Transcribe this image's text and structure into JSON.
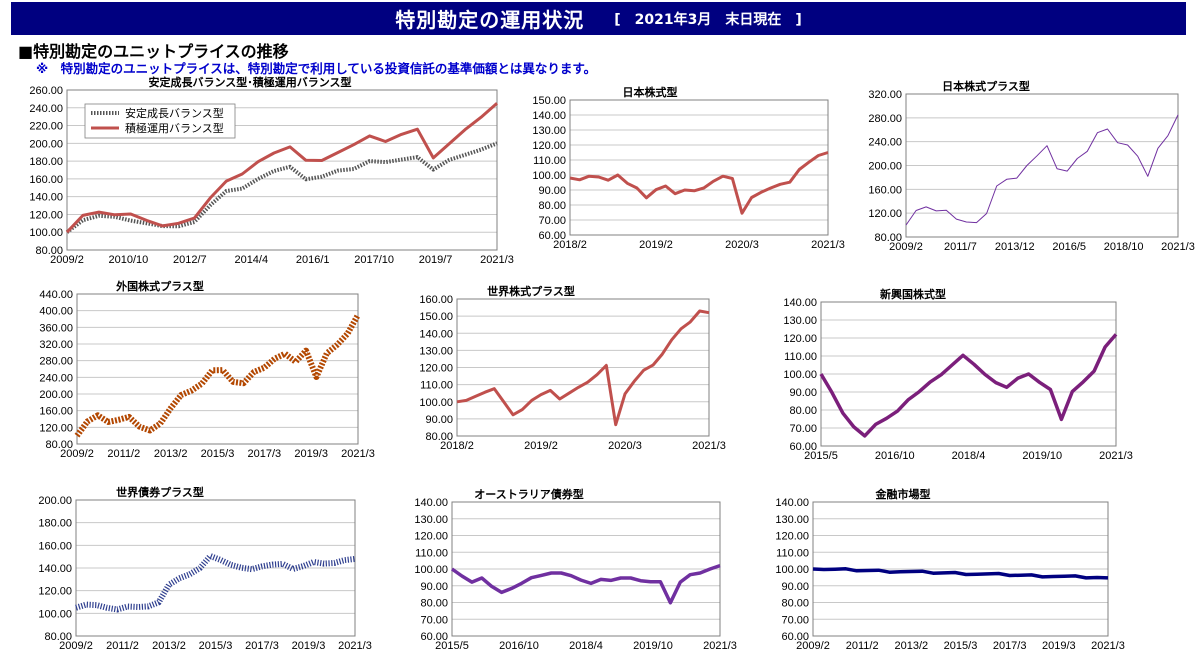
{
  "header": {
    "title": "特別勘定の運用状況",
    "date": "[　2021年3月　末日現在　]"
  },
  "subtitle": "■特別勘定のユニットプライスの推移",
  "note": "※　特別勘定のユニットプライスは、特別勘定で利用している投資信託の基準価額とは異なります。",
  "chart_data": [
    {
      "type": "line",
      "title": "安定成長バランス型･積極運用バランス型",
      "xticks": [
        "2009/2",
        "2010/10",
        "2012/7",
        "2014/4",
        "2016/1",
        "2017/10",
        "2019/7",
        "2021/3"
      ],
      "yticks": [
        "80.00",
        "100.00",
        "120.00",
        "140.00",
        "160.00",
        "180.00",
        "200.00",
        "220.00",
        "240.00",
        "260.00"
      ],
      "ylim": [
        80,
        260
      ],
      "legend": "top-left",
      "series": [
        {
          "name": "安定成長バランス型",
          "color": "#555555",
          "pattern": "dotted",
          "values": [
            100,
            114,
            118,
            116,
            114,
            110,
            106,
            108,
            112,
            130,
            145,
            150,
            160,
            168,
            175,
            160,
            162,
            168,
            172,
            180,
            178,
            183,
            185,
            170,
            180,
            188,
            193,
            200
          ]
        },
        {
          "name": "積極運用バランス型",
          "color": "#c0504d",
          "pattern": "solid",
          "values": [
            100,
            118,
            124,
            120,
            120,
            112,
            108,
            110,
            115,
            140,
            158,
            165,
            178,
            190,
            196,
            180,
            182,
            190,
            198,
            207,
            203,
            210,
            215,
            185,
            200,
            215,
            228,
            245
          ]
        }
      ]
    },
    {
      "type": "line",
      "title": "日本株式型",
      "xticks": [
        "2018/2",
        "2019/2",
        "2020/3",
        "2021/3"
      ],
      "yticks": [
        "60.00",
        "70.00",
        "80.00",
        "90.00",
        "100.00",
        "110.00",
        "120.00",
        "130.00",
        "140.00",
        "150.00"
      ],
      "ylim": [
        60,
        150
      ],
      "series": [
        {
          "name": "",
          "color": "#c0504d",
          "pattern": "solid",
          "values": [
            98,
            97,
            99,
            98,
            97,
            100,
            94,
            92,
            85,
            90,
            92,
            88,
            90,
            89,
            92,
            96,
            99,
            97,
            75,
            85,
            88,
            92,
            94,
            95,
            103,
            109,
            113,
            115
          ]
        }
      ]
    },
    {
      "type": "line",
      "title": "日本株式プラス型",
      "xticks": [
        "2009/2",
        "2011/7",
        "2013/12",
        "2016/5",
        "2018/10",
        "2021/3"
      ],
      "yticks": [
        "80.00",
        "120.00",
        "160.00",
        "200.00",
        "240.00",
        "280.00",
        "320.00"
      ],
      "ylim": [
        80,
        320
      ],
      "series": [
        {
          "name": "",
          "color": "#7030a0",
          "pattern": "thin",
          "values": [
            100,
            125,
            130,
            122,
            126,
            110,
            104,
            106,
            120,
            165,
            175,
            180,
            200,
            215,
            235,
            195,
            190,
            210,
            225,
            255,
            260,
            240,
            235,
            215,
            180,
            230,
            250,
            285
          ]
        }
      ]
    },
    {
      "type": "line",
      "title": "外国株式プラス型",
      "xticks": [
        "2009/2",
        "2011/2",
        "2013/2",
        "2015/3",
        "2017/3",
        "2019/3",
        "2021/3"
      ],
      "yticks": [
        "80.00",
        "120.00",
        "160.00",
        "200.00",
        "240.00",
        "280.00",
        "320.00",
        "360.00",
        "400.00",
        "440.00"
      ],
      "ylim": [
        80,
        440
      ],
      "series": [
        {
          "name": "",
          "color": "#b34700",
          "pattern": "dotted-thick",
          "values": [
            100,
            135,
            148,
            130,
            140,
            145,
            120,
            115,
            130,
            165,
            195,
            210,
            225,
            255,
            260,
            230,
            225,
            250,
            265,
            285,
            295,
            280,
            305,
            240,
            295,
            320,
            345,
            390
          ]
        }
      ]
    },
    {
      "type": "line",
      "title": "世界株式プラス型",
      "xticks": [
        "2018/2",
        "2019/2",
        "2020/3",
        "2021/3"
      ],
      "yticks": [
        "80.00",
        "90.00",
        "100.00",
        "110.00",
        "120.00",
        "130.00",
        "140.00",
        "150.00",
        "160.00"
      ],
      "ylim": [
        80,
        160
      ],
      "series": [
        {
          "name": "",
          "color": "#c0504d",
          "pattern": "solid",
          "values": [
            100,
            101,
            103,
            105,
            108,
            100,
            92,
            96,
            101,
            104,
            106,
            102,
            105,
            108,
            112,
            116,
            121,
            86,
            105,
            112,
            118,
            122,
            128,
            136,
            142,
            147,
            153,
            152
          ]
        }
      ]
    },
    {
      "type": "line",
      "title": "新興国株式型",
      "xticks": [
        "2015/5",
        "2016/10",
        "2018/4",
        "2019/10",
        "2021/3"
      ],
      "yticks": [
        "60.00",
        "70.00",
        "80.00",
        "90.00",
        "100.00",
        "110.00",
        "120.00",
        "130.00",
        "140.00"
      ],
      "ylim": [
        60,
        140
      ],
      "series": [
        {
          "name": "",
          "color": "#7b1f7b",
          "pattern": "thick",
          "values": [
            100,
            90,
            78,
            70,
            66,
            72,
            75,
            80,
            86,
            90,
            95,
            100,
            105,
            110,
            106,
            100,
            95,
            92,
            98,
            100,
            95,
            92,
            75,
            90,
            95,
            102,
            115,
            122
          ]
        }
      ]
    },
    {
      "type": "line",
      "title": "世界債券プラス型",
      "xticks": [
        "2009/2",
        "2011/2",
        "2013/2",
        "2015/3",
        "2017/3",
        "2019/3",
        "2021/3"
      ],
      "yticks": [
        "80.00",
        "100.00",
        "120.00",
        "140.00",
        "160.00",
        "180.00",
        "200.00"
      ],
      "ylim": [
        80,
        200
      ],
      "series": [
        {
          "name": "",
          "color": "#2f3f8f",
          "pattern": "dotted-light",
          "values": [
            105,
            108,
            107,
            104,
            104,
            106,
            105,
            107,
            110,
            125,
            130,
            135,
            140,
            150,
            148,
            143,
            140,
            138,
            142,
            143,
            143,
            140,
            142,
            145,
            143,
            145,
            147,
            148
          ]
        }
      ]
    },
    {
      "type": "line",
      "title": "オーストラリア債券型",
      "xticks": [
        "2015/5",
        "2016/10",
        "2018/4",
        "2019/10",
        "2021/3"
      ],
      "yticks": [
        "60.00",
        "70.00",
        "80.00",
        "90.00",
        "100.00",
        "110.00",
        "120.00",
        "130.00",
        "140.00"
      ],
      "ylim": [
        60,
        140
      ],
      "series": [
        {
          "name": "",
          "color": "#7030a0",
          "pattern": "thick",
          "values": [
            100,
            96,
            92,
            94,
            90,
            86,
            88,
            92,
            95,
            96,
            97,
            98,
            96,
            93,
            92,
            94,
            93,
            94,
            95,
            93,
            92,
            93,
            80,
            92,
            96,
            98,
            100,
            102
          ]
        }
      ]
    },
    {
      "type": "line",
      "title": "金融市場型",
      "xticks": [
        "2009/2",
        "2011/2",
        "2013/2",
        "2015/3",
        "2017/3",
        "2019/3",
        "2021/3"
      ],
      "yticks": [
        "60.00",
        "70.00",
        "80.00",
        "90.00",
        "100.00",
        "110.00",
        "120.00",
        "130.00",
        "140.00"
      ],
      "ylim": [
        60,
        140
      ],
      "series": [
        {
          "name": "",
          "color": "#000080",
          "pattern": "thick",
          "values": [
            100,
            99.9,
            99.7,
            99.5,
            99.3,
            99.1,
            98.9,
            98.7,
            98.5,
            98.3,
            98.1,
            97.9,
            97.7,
            97.5,
            97.3,
            97.1,
            96.9,
            96.7,
            96.5,
            96.3,
            96.1,
            95.9,
            95.7,
            95.5,
            95.3,
            95.1,
            94.9,
            94.7
          ]
        }
      ]
    }
  ]
}
